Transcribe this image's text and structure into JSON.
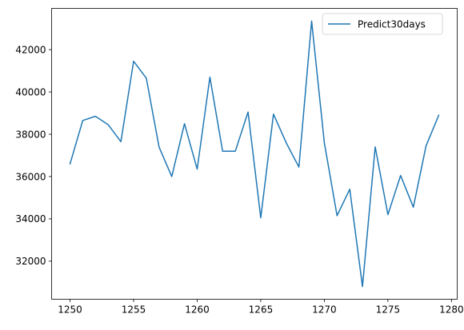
{
  "chart_data": {
    "type": "line",
    "title": "",
    "xlabel": "",
    "ylabel": "",
    "xlim": [
      1248.55,
      1280.45
    ],
    "ylim": [
      30200,
      43950
    ],
    "xticks": [
      1250,
      1255,
      1260,
      1265,
      1270,
      1275,
      1280
    ],
    "yticks": [
      32000,
      34000,
      36000,
      38000,
      40000,
      42000
    ],
    "grid": false,
    "legend_position": "top-right",
    "series": [
      {
        "name": "Predict30days",
        "color": "#1f77b4",
        "x": [
          1250,
          1251,
          1252,
          1253,
          1254,
          1255,
          1256,
          1257,
          1258,
          1259,
          1260,
          1261,
          1262,
          1263,
          1264,
          1265,
          1266,
          1267,
          1268,
          1269,
          1270,
          1271,
          1272,
          1273,
          1274,
          1275,
          1276,
          1277,
          1278,
          1279
        ],
        "y": [
          36600,
          38650,
          38850,
          38450,
          37650,
          41450,
          40650,
          37400,
          36000,
          38500,
          36350,
          40700,
          37200,
          37200,
          39050,
          34050,
          38950,
          37600,
          36450,
          43350,
          37600,
          34150,
          35400,
          30800,
          37400,
          34200,
          36050,
          34550,
          37450,
          38900
        ]
      }
    ]
  }
}
